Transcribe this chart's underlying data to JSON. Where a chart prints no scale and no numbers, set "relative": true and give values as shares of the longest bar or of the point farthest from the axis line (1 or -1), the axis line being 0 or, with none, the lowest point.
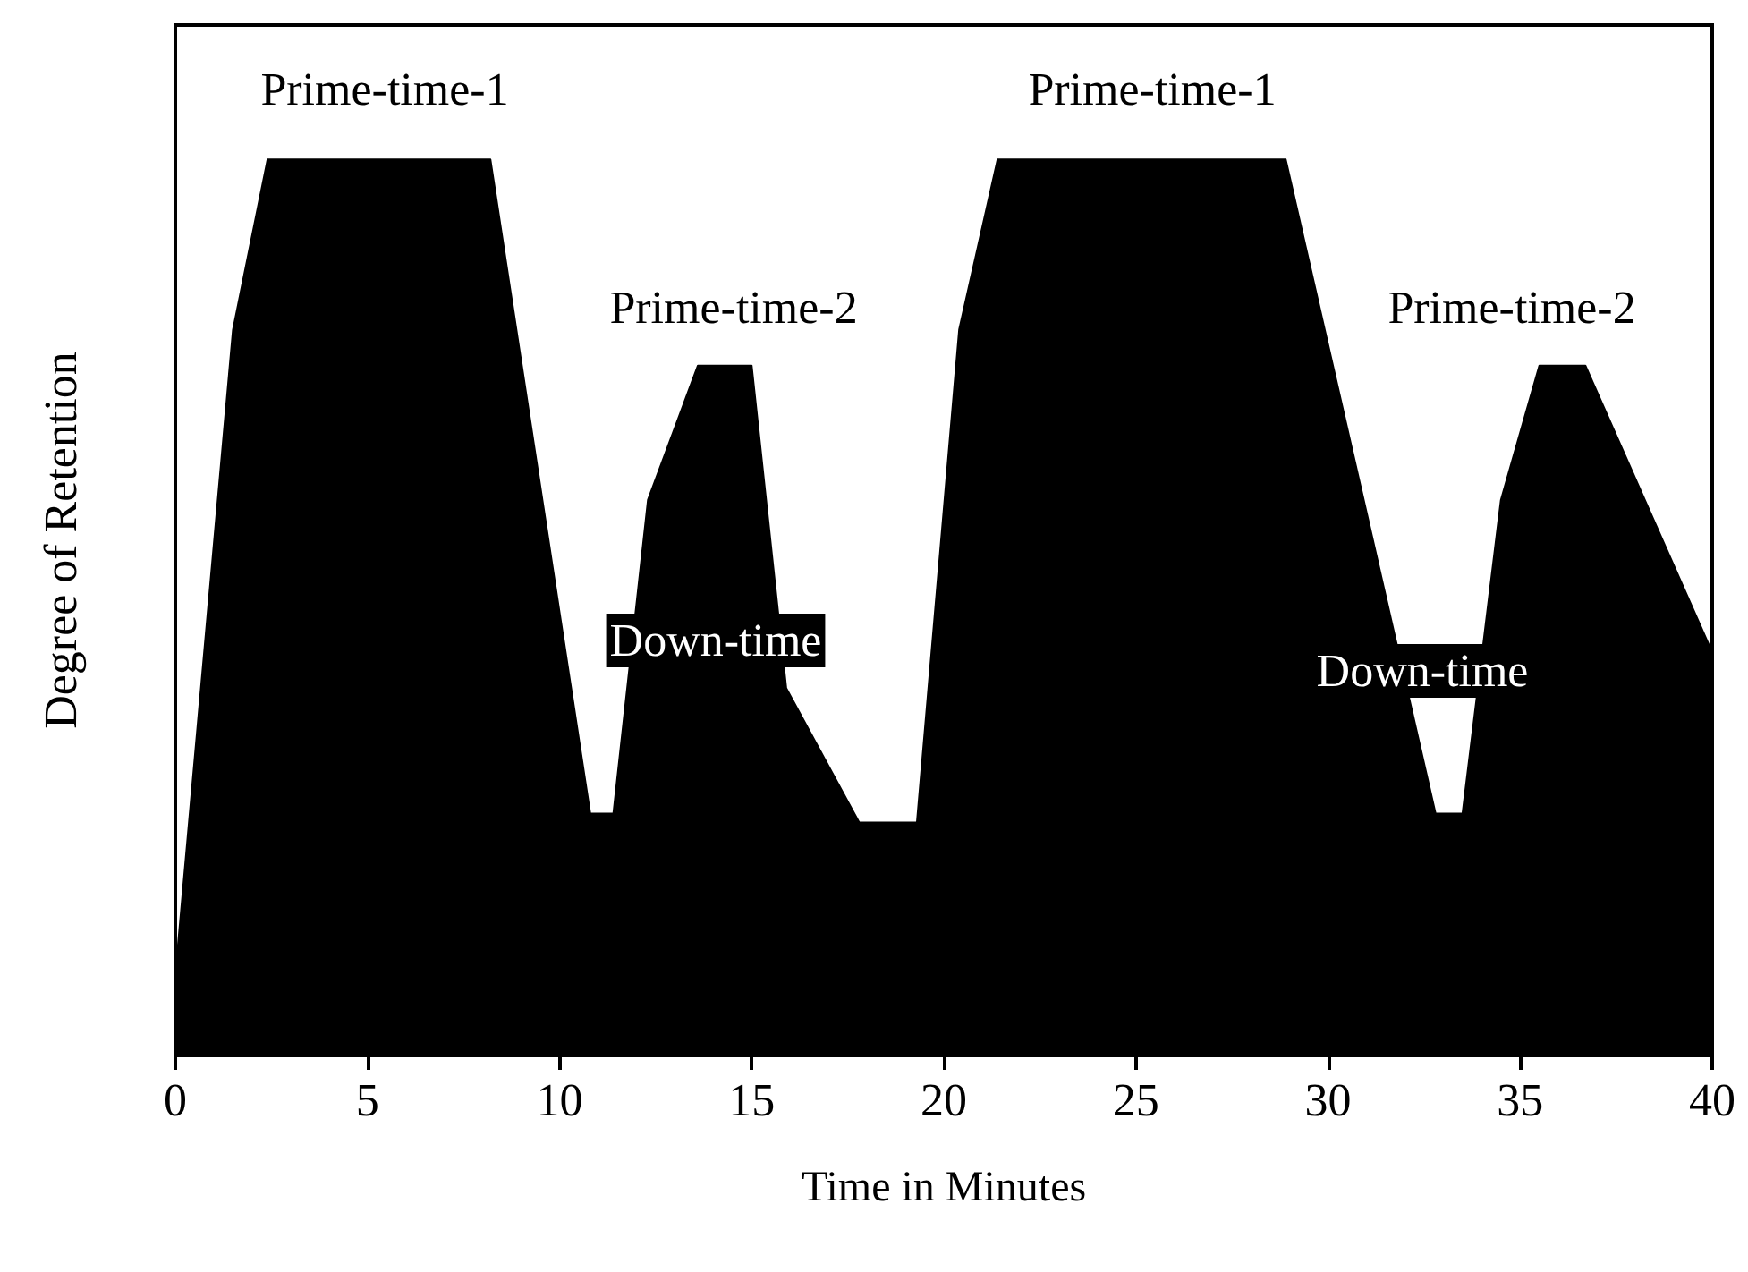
{
  "chart_data": {
    "type": "area",
    "relative": true,
    "xlabel": "Time in Minutes",
    "ylabel": "Degree of Retention",
    "x": [
      0,
      1.5,
      2.4,
      8.2,
      10.8,
      11.4,
      12.3,
      13.6,
      15,
      15.9,
      17.8,
      19.3,
      20.4,
      21.4,
      28.9,
      32.8,
      33.5,
      34.5,
      35.5,
      36.7,
      40
    ],
    "series": [
      {
        "color": "#000000",
        "values": [
          0.09,
          0.81,
          1,
          1,
          0.27,
          0.27,
          0.62,
          0.77,
          0.77,
          0.41,
          0.26,
          0.26,
          0.81,
          1,
          1,
          0.27,
          0.27,
          0.62,
          0.77,
          0.77,
          0.45
        ]
      }
    ],
    "xlim": [
      0,
      40
    ],
    "xticks": [
      0,
      5,
      10,
      15,
      20,
      25,
      30,
      35,
      40
    ],
    "grid": false,
    "marker": "none",
    "annotations": [
      "Prime-time-1",
      "Prime-time-2",
      "Down-time",
      "Prime-time-1",
      "Prime-time-2",
      "Down-time"
    ]
  }
}
